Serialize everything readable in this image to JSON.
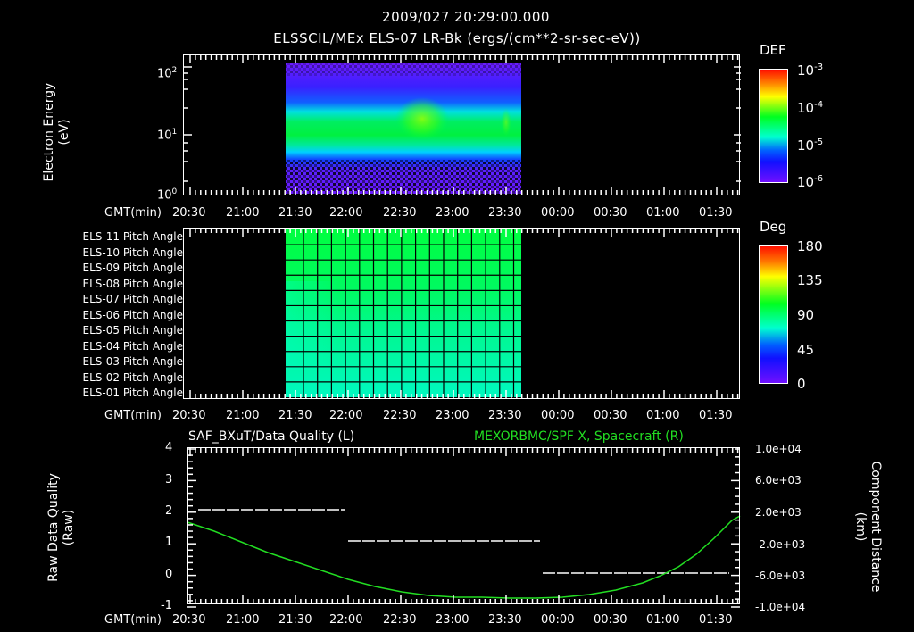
{
  "header": {
    "timestamp": "2009/027 20:29:00.000",
    "title": "ELSSCIL/MEx ELS-07 LR-Bk  (ergs/(cm**2-sr-sec-eV))"
  },
  "time_axis": {
    "label": "GMT(min)",
    "ticks": [
      "20:30",
      "21:00",
      "21:30",
      "22:00",
      "22:30",
      "23:00",
      "23:30",
      "00:00",
      "00:30",
      "01:00",
      "01:30"
    ]
  },
  "panel1": {
    "ylabel_line1": "Electron Energy",
    "ylabel_line2": "(eV)",
    "yticks": [
      {
        "base": "10",
        "exp": "2"
      },
      {
        "base": "10",
        "exp": "1"
      },
      {
        "base": "10",
        "exp": "0"
      }
    ],
    "colorbar": {
      "title": "DEF",
      "ticks": [
        {
          "base": "10",
          "exp": "-3"
        },
        {
          "base": "10",
          "exp": "-4"
        },
        {
          "base": "10",
          "exp": "-5"
        },
        {
          "base": "10",
          "exp": "-6"
        }
      ]
    }
  },
  "panel2": {
    "rows": [
      "ELS-11 Pitch Angle",
      "ELS-10 Pitch Angle",
      "ELS-09 Pitch Angle",
      "ELS-08 Pitch Angle",
      "ELS-07 Pitch Angle",
      "ELS-06 Pitch Angle",
      "ELS-05 Pitch Angle",
      "ELS-04 Pitch Angle",
      "ELS-03 Pitch Angle",
      "ELS-02 Pitch Angle",
      "ELS-01 Pitch Angle"
    ],
    "colorbar": {
      "title": "Deg",
      "ticks": [
        "180",
        "135",
        "90",
        "45",
        "0"
      ]
    }
  },
  "panel3": {
    "left_title": "SAF_BXuT/Data Quality (L)",
    "right_title": "MEXORBMC/SPF X, Spacecraft (R)",
    "ylabel_left_line1": "Raw Data Quality",
    "ylabel_left_line2": "(Raw)",
    "ylabel_right_line1": "Component Distance",
    "ylabel_right_line2": "(km)",
    "yticks_left": [
      "4",
      "3",
      "2",
      "1",
      "0",
      "-1"
    ],
    "yticks_right": [
      "1.0e+04",
      "6.0e+03",
      "2.0e+03",
      "-2.0e+03",
      "-6.0e+03",
      "-1.0e+04"
    ]
  },
  "colors": {
    "background": "#000000",
    "axis": "#ffffff",
    "spacecraft_line": "#22dd22",
    "quality_line": "#ffffff"
  },
  "chart_data": [
    {
      "type": "heatmap",
      "title": "ELSSCIL/MEx ELS-07 LR-Bk (ergs/(cm**2-sr-sec-eV))",
      "xlabel": "GMT(min)",
      "ylabel": "Electron Energy (eV)",
      "yscale": "log",
      "ylim": [
        1,
        150
      ],
      "x_ticks": [
        "20:30",
        "21:00",
        "21:30",
        "22:00",
        "22:30",
        "23:00",
        "23:30",
        "00:00",
        "00:30",
        "01:00",
        "01:30"
      ],
      "data_extent_x": [
        "21:25",
        "23:40"
      ],
      "colorbar": {
        "label": "DEF",
        "scale": "log",
        "range": [
          1e-06,
          0.001
        ]
      },
      "description": "Peak flux band ~6-20 eV (green, ~1e-4); enhancement near 22:35-22:45; sparse low-flux below 4 eV."
    },
    {
      "type": "heatmap",
      "xlabel": "GMT(min)",
      "categories": [
        "ELS-11",
        "ELS-10",
        "ELS-09",
        "ELS-08",
        "ELS-07",
        "ELS-06",
        "ELS-05",
        "ELS-04",
        "ELS-03",
        "ELS-02",
        "ELS-01"
      ],
      "data_extent_x": [
        "21:25",
        "23:40"
      ],
      "colorbar": {
        "label": "Deg",
        "range": [
          0,
          180
        ],
        "ticks": [
          0,
          45,
          90,
          135,
          180
        ]
      },
      "approx_values_deg": [
        95,
        93,
        90,
        88,
        85,
        82,
        80,
        78,
        77,
        76,
        76
      ]
    },
    {
      "type": "line",
      "title_left": "SAF_BXuT/Data Quality (L)",
      "title_right": "MEXORBMC/SPF X, Spacecraft (R)",
      "xlabel": "GMT(min)",
      "ylabel": "Raw Data Quality (Raw)",
      "ylabel_right": "Component Distance (km)",
      "ylim": [
        -1,
        4
      ],
      "ylim_right": [
        -10000,
        10000
      ],
      "series": [
        {
          "name": "Data Quality (L)",
          "axis": "left",
          "x": [
            "20:35",
            "22:00",
            "22:00",
            "23:45",
            "23:45",
            "01:45"
          ],
          "values": [
            2,
            2,
            1,
            1,
            0,
            0
          ]
        },
        {
          "name": "SPF X, Spacecraft (R)",
          "axis": "right",
          "x": [
            "20:30",
            "21:00",
            "21:30",
            "22:00",
            "22:30",
            "23:00",
            "23:30",
            "00:00",
            "00:30",
            "01:00",
            "01:30",
            "01:45"
          ],
          "values": [
            2500,
            0,
            -2500,
            -4800,
            -6800,
            -8200,
            -8800,
            -8800,
            -7900,
            -6000,
            -2000,
            1200
          ]
        }
      ]
    }
  ]
}
